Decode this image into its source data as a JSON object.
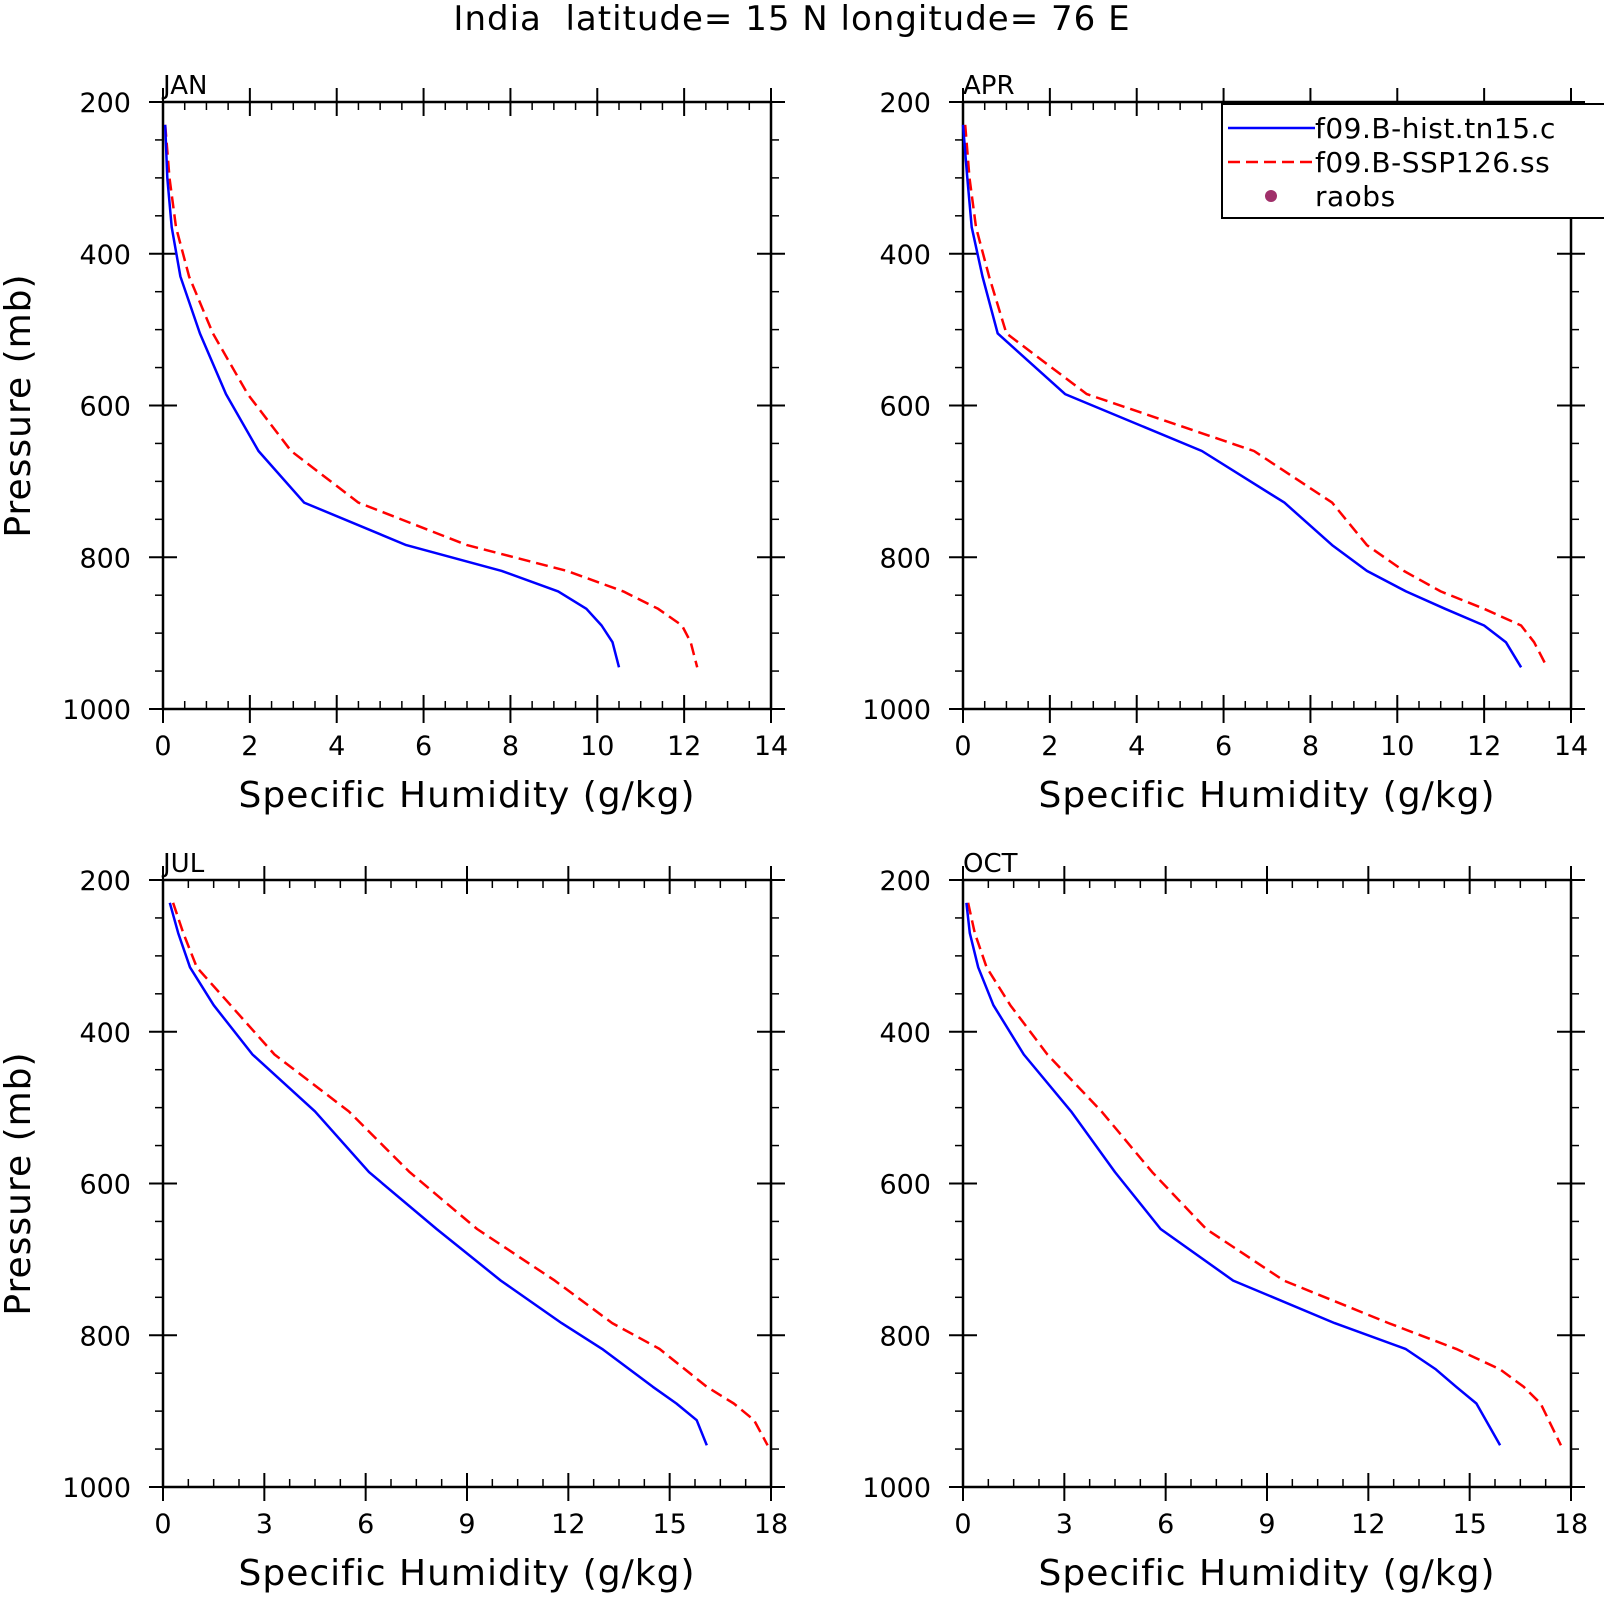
{
  "title": "India  latitude= 15 N longitude= 76 E",
  "legend": {
    "entries": [
      {
        "label": "f09.B-hist.tn15.c",
        "style": "solid",
        "color": "#0000ff"
      },
      {
        "label": "f09.B-SSP126.ss",
        "style": "dashed",
        "color": "#ff0000"
      },
      {
        "label": "raobs",
        "style": "dot",
        "color": "#a0306a"
      }
    ]
  },
  "colors": {
    "hist": "#0000ff",
    "ssp": "#ff0000",
    "raobs": "#a0306a"
  },
  "chart_data": [
    {
      "type": "line",
      "panel": "JAN",
      "xlabel": "Specific Humidity (g/kg)",
      "ylabel": "Pressure (mb)",
      "xlim": [
        0,
        14
      ],
      "xticks": [
        0,
        2,
        4,
        6,
        8,
        10,
        12,
        14
      ],
      "ylim": [
        200,
        1000
      ],
      "yticks": [
        200,
        400,
        600,
        800,
        1000
      ],
      "y_inverted": true,
      "series": [
        {
          "name": "f09.B-hist.tn15.c",
          "x": [
            0.05,
            0.1,
            0.2,
            0.4,
            0.85,
            1.45,
            2.2,
            3.25,
            5.6,
            7.8,
            9.1,
            9.75,
            10.1,
            10.35,
            10.5
          ],
          "y": [
            230,
            300,
            365,
            430,
            505,
            585,
            660,
            728,
            784,
            818,
            845,
            868,
            890,
            912,
            945
          ]
        },
        {
          "name": "f09.B-SSP126.ss",
          "x": [
            0.05,
            0.15,
            0.3,
            0.6,
            1.15,
            1.95,
            2.95,
            4.5,
            7.0,
            9.3,
            10.6,
            11.4,
            11.95,
            12.15,
            12.3
          ],
          "y": [
            230,
            300,
            365,
            430,
            505,
            585,
            660,
            728,
            784,
            818,
            845,
            868,
            890,
            912,
            945
          ]
        }
      ]
    },
    {
      "type": "line",
      "panel": "APR",
      "xlabel": "Specific Humidity (g/kg)",
      "ylabel": "",
      "xlim": [
        0,
        14
      ],
      "xticks": [
        0,
        2,
        4,
        6,
        8,
        10,
        12,
        14
      ],
      "ylim": [
        200,
        1000
      ],
      "yticks": [
        200,
        400,
        600,
        800,
        1000
      ],
      "y_inverted": true,
      "series": [
        {
          "name": "f09.B-hist.tn15.c",
          "x": [
            0.0,
            0.1,
            0.2,
            0.45,
            0.8,
            2.35,
            5.5,
            7.4,
            8.5,
            9.3,
            10.2,
            11.1,
            12.0,
            12.5,
            12.85
          ],
          "y": [
            230,
            300,
            365,
            430,
            505,
            585,
            660,
            728,
            784,
            818,
            845,
            868,
            890,
            912,
            945
          ]
        },
        {
          "name": "f09.B-SSP126.ss",
          "x": [
            0.05,
            0.15,
            0.3,
            0.6,
            1.0,
            2.85,
            6.7,
            8.5,
            9.3,
            10.15,
            11.0,
            12.0,
            12.85,
            13.15,
            13.45
          ],
          "y": [
            230,
            300,
            365,
            430,
            505,
            585,
            660,
            728,
            784,
            818,
            845,
            868,
            890,
            912,
            945
          ]
        }
      ]
    },
    {
      "type": "line",
      "panel": "JUL",
      "xlabel": "Specific Humidity (g/kg)",
      "ylabel": "Pressure (mb)",
      "xlim": [
        0,
        18
      ],
      "xticks": [
        0,
        3,
        6,
        9,
        12,
        15,
        18
      ],
      "ylim": [
        200,
        1000
      ],
      "yticks": [
        200,
        400,
        600,
        800,
        1000
      ],
      "y_inverted": true,
      "series": [
        {
          "name": "f09.B-hist.tn15.c",
          "x": [
            0.2,
            0.45,
            0.8,
            1.5,
            2.65,
            4.5,
            6.1,
            8.1,
            10.0,
            11.8,
            13.0,
            14.5,
            15.2,
            15.8,
            16.1
          ],
          "y": [
            230,
            270,
            315,
            365,
            430,
            505,
            585,
            660,
            728,
            784,
            818,
            868,
            890,
            912,
            945
          ]
        },
        {
          "name": "f09.B-SSP126.ss",
          "x": [
            0.3,
            0.6,
            1.0,
            2.0,
            3.3,
            5.5,
            7.3,
            9.3,
            11.6,
            13.3,
            14.7,
            16.1,
            16.9,
            17.5,
            17.9
          ],
          "y": [
            230,
            270,
            315,
            365,
            430,
            505,
            585,
            660,
            728,
            784,
            818,
            868,
            890,
            912,
            945
          ]
        }
      ]
    },
    {
      "type": "line",
      "panel": "OCT",
      "xlabel": "Specific Humidity (g/kg)",
      "ylabel": "",
      "xlim": [
        0,
        18
      ],
      "xticks": [
        0,
        3,
        6,
        9,
        12,
        15,
        18
      ],
      "ylim": [
        200,
        1000
      ],
      "yticks": [
        200,
        400,
        600,
        800,
        1000
      ],
      "y_inverted": true,
      "series": [
        {
          "name": "f09.B-hist.tn15.c",
          "x": [
            0.1,
            0.2,
            0.45,
            0.9,
            1.8,
            3.2,
            4.5,
            5.85,
            8.0,
            11.0,
            13.1,
            14.0,
            14.6,
            15.2,
            15.9
          ],
          "y": [
            230,
            270,
            315,
            365,
            430,
            505,
            585,
            660,
            728,
            784,
            818,
            845,
            868,
            890,
            945
          ]
        },
        {
          "name": "f09.B-SSP126.ss",
          "x": [
            0.15,
            0.35,
            0.7,
            1.4,
            2.5,
            4.1,
            5.6,
            7.2,
            9.5,
            12.6,
            14.6,
            15.9,
            16.6,
            17.1,
            17.7
          ],
          "y": [
            230,
            270,
            315,
            365,
            430,
            505,
            585,
            660,
            728,
            784,
            818,
            845,
            868,
            890,
            945
          ]
        }
      ]
    }
  ]
}
